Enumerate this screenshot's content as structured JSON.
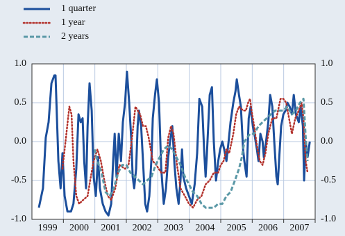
{
  "chart_data": {
    "type": "line",
    "xlim": [
      1999,
      2008
    ],
    "xticks": [
      {
        "value": 1999.5,
        "label": "1999"
      },
      {
        "value": 2000.5,
        "label": "2000"
      },
      {
        "value": 2001.5,
        "label": "2001"
      },
      {
        "value": 2002.5,
        "label": "2002"
      },
      {
        "value": 2003.5,
        "label": "2003"
      },
      {
        "value": 2004.5,
        "label": "2004"
      },
      {
        "value": 2005.5,
        "label": "2005"
      },
      {
        "value": 2006.5,
        "label": "2006"
      },
      {
        "value": 2007.5,
        "label": "2007"
      }
    ],
    "ylim": [
      -1,
      1
    ],
    "yticks": [
      {
        "value": 1,
        "label": "1.0"
      },
      {
        "value": 0.5,
        "label": "0.5"
      },
      {
        "value": 0,
        "label": "0.0"
      },
      {
        "value": -0.5,
        "label": "-0.5"
      },
      {
        "value": -1,
        "label": "-1.0"
      }
    ],
    "y2lim": [
      -1,
      1
    ],
    "y2ticks": [
      {
        "value": 1,
        "label": "1.0"
      },
      {
        "value": 0.5,
        "label": "0.5"
      },
      {
        "value": 0,
        "label": "0.0"
      },
      {
        "value": -0.5,
        "label": "-0.5"
      },
      {
        "value": -1,
        "label": "-1.0"
      }
    ],
    "grid": true,
    "legend": "top-left",
    "series": [
      {
        "name": "1 quarter",
        "color": "#1c4f9c",
        "style": "solid",
        "x": [
          1999.22,
          1999.35,
          1999.44,
          1999.53,
          1999.62,
          1999.71,
          1999.75,
          1999.84,
          1999.91,
          1999.97,
          2000.04,
          2000.13,
          2000.24,
          2000.32,
          2000.41,
          2000.48,
          2000.55,
          2000.61,
          2000.66,
          2000.72,
          2000.77,
          2000.83,
          2000.9,
          2000.96,
          2001.03,
          2001.1,
          2001.16,
          2001.25,
          2001.34,
          2001.43,
          2001.52,
          2001.58,
          2001.63,
          2001.69,
          2001.76,
          2001.83,
          2001.89,
          2001.96,
          2002.02,
          2002.09,
          2002.16,
          2002.2,
          2002.25,
          2002.31,
          2002.36,
          2002.4,
          2002.47,
          2002.53,
          2002.6,
          2002.66,
          2002.73,
          2002.8,
          2002.84,
          2002.91,
          2002.97,
          2003.04,
          2003.11,
          2003.19,
          2003.26,
          2003.33,
          2003.39,
          2003.46,
          2003.53,
          2003.59,
          2003.66,
          2003.72,
          2003.77,
          2003.81,
          2003.9,
          2003.99,
          2004.08,
          2004.17,
          2004.25,
          2004.32,
          2004.41,
          2004.47,
          2004.52,
          2004.56,
          2004.65,
          2004.72,
          2004.78,
          2004.85,
          2004.92,
          2004.98,
          2005.05,
          2005.11,
          2005.18,
          2005.25,
          2005.31,
          2005.4,
          2005.47,
          2005.51,
          2005.58,
          2005.64,
          2005.71,
          2005.75,
          2005.82,
          2005.89,
          2005.95,
          2006.02,
          2006.09,
          2006.15,
          2006.2,
          2006.26,
          2006.33,
          2006.37,
          2006.44,
          2006.51,
          2006.57,
          2006.64,
          2006.7,
          2006.77,
          2006.81,
          2006.86,
          2006.92,
          2006.99,
          2007.06,
          2007.12,
          2007.19,
          2007.26,
          2007.32,
          2007.39,
          2007.48,
          2007.54,
          2007.61,
          2007.65,
          2007.7,
          2007.76,
          2007.83
        ],
        "values": [
          -0.85,
          -0.6,
          0.05,
          0.25,
          0.75,
          0.85,
          0.85,
          -0.25,
          -0.6,
          -0.15,
          -0.7,
          -0.9,
          -0.9,
          -0.8,
          -0.35,
          0.35,
          0.25,
          0.3,
          -0.25,
          -0.6,
          0.2,
          0.75,
          0.4,
          -0.45,
          -0.7,
          -0.2,
          -0.6,
          -0.8,
          -0.9,
          -0.95,
          -0.8,
          -0.25,
          0.1,
          -0.45,
          0.1,
          -0.25,
          0.25,
          0.5,
          0.9,
          0.5,
          0.0,
          -0.45,
          -0.6,
          -0.35,
          0.2,
          0.4,
          0.2,
          -0.25,
          -0.8,
          -0.9,
          -0.7,
          -0.2,
          0.3,
          0.6,
          0.8,
          0.5,
          -0.35,
          -0.8,
          -0.6,
          -0.2,
          0.0,
          0.2,
          -0.3,
          -0.6,
          -0.8,
          -0.5,
          -0.1,
          -0.45,
          -0.6,
          -0.7,
          -0.8,
          -0.55,
          -0.15,
          0.55,
          0.45,
          -0.1,
          -0.45,
          -0.15,
          0.6,
          0.7,
          0.0,
          -0.5,
          -0.25,
          -0.1,
          0.0,
          -0.1,
          -0.25,
          0.0,
          0.25,
          0.5,
          0.65,
          0.8,
          0.6,
          0.45,
          -0.1,
          -0.25,
          -0.45,
          0.3,
          0.45,
          0.2,
          0.05,
          -0.1,
          -0.25,
          0.1,
          0.0,
          -0.2,
          0.0,
          0.25,
          0.6,
          0.45,
          0.0,
          -0.45,
          -0.55,
          -0.2,
          0.2,
          0.35,
          0.4,
          0.5,
          0.45,
          0.35,
          0.6,
          0.35,
          0.25,
          0.45,
          0.2,
          -0.5,
          0.0,
          -0.2,
          0.0
        ]
      },
      {
        "name": "1 year",
        "color": "#b3322c",
        "style": "dotted",
        "x": [
          1999.97,
          2000.08,
          2000.19,
          2000.26,
          2000.32,
          2000.41,
          2000.5,
          2000.63,
          2000.77,
          2000.85,
          2000.96,
          2001.08,
          2001.19,
          2001.3,
          2001.41,
          2001.52,
          2001.65,
          2001.78,
          2001.96,
          2002.07,
          2002.18,
          2002.29,
          2002.36,
          2002.44,
          2002.53,
          2002.62,
          2002.71,
          2002.84,
          2002.95,
          2003.11,
          2003.24,
          2003.33,
          2003.42,
          2003.5,
          2003.61,
          2003.72,
          2003.86,
          2003.99,
          2004.12,
          2004.25,
          2004.39,
          2004.52,
          2004.65,
          2004.78,
          2004.92,
          2005.0,
          2005.09,
          2005.18,
          2005.27,
          2005.4,
          2005.49,
          2005.58,
          2005.71,
          2005.8,
          2005.87,
          2005.93,
          2005.98,
          2006.06,
          2006.15,
          2006.24,
          2006.33,
          2006.42,
          2006.51,
          2006.64,
          2006.77,
          2006.9,
          2006.99,
          2007.08,
          2007.17,
          2007.26,
          2007.37,
          2007.48,
          2007.57,
          2007.63,
          2007.7,
          2007.76
        ],
        "values": [
          -0.35,
          0.05,
          0.45,
          0.35,
          -0.25,
          -0.7,
          -0.8,
          -0.75,
          -0.7,
          -0.5,
          -0.25,
          -0.1,
          -0.25,
          -0.5,
          -0.7,
          -0.75,
          -0.6,
          -0.3,
          -0.35,
          -0.3,
          0.05,
          0.45,
          0.4,
          0.35,
          0.2,
          0.2,
          0.05,
          -0.25,
          -0.3,
          -0.4,
          -0.4,
          0.05,
          0.2,
          0.1,
          -0.3,
          -0.6,
          -0.7,
          -0.8,
          -0.85,
          -0.75,
          -0.7,
          -0.55,
          -0.5,
          -0.4,
          -0.4,
          -0.3,
          -0.25,
          -0.1,
          -0.15,
          0.1,
          0.35,
          0.45,
          0.4,
          0.4,
          0.5,
          0.55,
          0.4,
          0.2,
          -0.05,
          -0.25,
          -0.3,
          -0.15,
          0.1,
          0.3,
          0.3,
          0.55,
          0.55,
          0.5,
          0.3,
          0.1,
          0.3,
          0.4,
          0.5,
          0.3,
          -0.25,
          -0.4
        ]
      },
      {
        "name": "2 years",
        "color": "#5a98a6",
        "style": "dashed",
        "x": [
          2000.99,
          2001.08,
          2001.21,
          2001.34,
          2001.47,
          2001.6,
          2001.74,
          2001.87,
          2002.0,
          2002.13,
          2002.27,
          2002.4,
          2002.53,
          2002.66,
          2002.8,
          2002.93,
          2003.06,
          2003.19,
          2003.33,
          2003.46,
          2003.59,
          2003.72,
          2003.86,
          2003.99,
          2004.12,
          2004.25,
          2004.39,
          2004.52,
          2004.65,
          2004.78,
          2004.92,
          2005.05,
          2005.18,
          2005.31,
          2005.45,
          2005.58,
          2005.67,
          2005.75,
          2005.84,
          2005.93,
          2006.06,
          2006.2,
          2006.33,
          2006.46,
          2006.59,
          2006.73,
          2006.86,
          2006.99,
          2007.12,
          2007.26,
          2007.39,
          2007.52,
          2007.63,
          2007.7,
          2007.76
        ],
        "values": [
          -0.1,
          -0.25,
          -0.4,
          -0.65,
          -0.7,
          -0.6,
          -0.4,
          -0.3,
          -0.3,
          -0.4,
          -0.45,
          -0.5,
          -0.55,
          -0.5,
          -0.45,
          -0.3,
          -0.2,
          -0.1,
          -0.05,
          -0.1,
          -0.2,
          -0.3,
          -0.45,
          -0.55,
          -0.65,
          -0.7,
          -0.8,
          -0.85,
          -0.85,
          -0.85,
          -0.8,
          -0.8,
          -0.7,
          -0.65,
          -0.5,
          -0.35,
          -0.2,
          0,
          0.05,
          0.1,
          0.1,
          0.2,
          0.25,
          0.3,
          0.35,
          0.4,
          0.4,
          0.4,
          0.45,
          0.35,
          0.4,
          0.5,
          0.55,
          0.05,
          -0.25
        ]
      }
    ]
  }
}
